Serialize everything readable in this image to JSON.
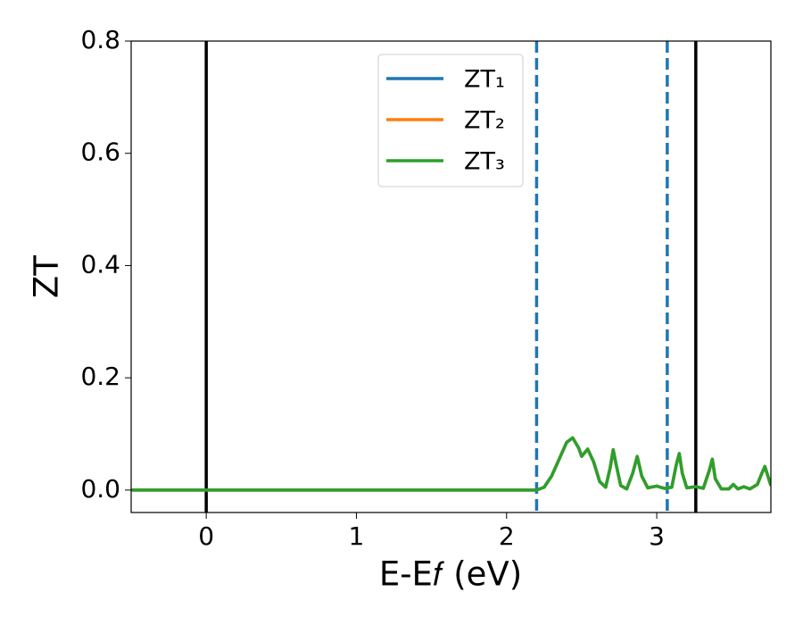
{
  "chart_data": {
    "type": "line",
    "x_label": "E-E𝑓 (eV)",
    "y_label": "ZT",
    "xlim": [
      -0.5,
      3.76
    ],
    "ylim": [
      -0.04,
      0.8
    ],
    "xticks": [
      0,
      1,
      2,
      3
    ],
    "yticks": [
      {
        "value": 0,
        "label": "0.0"
      },
      0.2,
      0.4,
      0.6,
      0.8
    ],
    "legend": "upper center",
    "vlines": [
      {
        "x": 0,
        "color": "#000000",
        "style": "solid"
      },
      {
        "x": 3.26,
        "color": "#000000",
        "style": "solid"
      },
      {
        "x": 2.2,
        "color": "#1f77b4",
        "style": "dashed"
      },
      {
        "x": 3.07,
        "color": "#1f77b4",
        "style": "dashed"
      }
    ],
    "x": [
      -0.5,
      2.2,
      2.25,
      2.3,
      2.35,
      2.4,
      2.44,
      2.48,
      2.5,
      2.54,
      2.58,
      2.62,
      2.66,
      2.69,
      2.71,
      2.73,
      2.76,
      2.8,
      2.84,
      2.87,
      2.9,
      2.94,
      3.0,
      3.05,
      3.1,
      3.13,
      3.15,
      3.17,
      3.2,
      3.26,
      3.31,
      3.35,
      3.37,
      3.39,
      3.43,
      3.48,
      3.51,
      3.54,
      3.58,
      3.62,
      3.67,
      3.7,
      3.72,
      3.74,
      3.76
    ],
    "series": [
      {
        "name": "ZT₁",
        "color": "#1f77b4",
        "values": [
          0,
          0,
          0.005,
          0.025,
          0.055,
          0.085,
          0.093,
          0.075,
          0.06,
          0.073,
          0.05,
          0.015,
          0.005,
          0.04,
          0.072,
          0.045,
          0.008,
          0.002,
          0.03,
          0.06,
          0.025,
          0.004,
          0.007,
          0.003,
          0.005,
          0.045,
          0.065,
          0.03,
          0.004,
          0.006,
          0.003,
          0.035,
          0.055,
          0.02,
          0.002,
          0.002,
          0.01,
          0.002,
          0.006,
          0.002,
          0.01,
          0.03,
          0.042,
          0.025,
          0.008
        ]
      },
      {
        "name": "ZT₂",
        "color": "#ff7f0e",
        "values": [
          0,
          0,
          0.005,
          0.025,
          0.055,
          0.085,
          0.093,
          0.075,
          0.06,
          0.073,
          0.05,
          0.015,
          0.005,
          0.04,
          0.072,
          0.045,
          0.008,
          0.002,
          0.03,
          0.06,
          0.025,
          0.004,
          0.007,
          0.003,
          0.005,
          0.045,
          0.065,
          0.03,
          0.004,
          0.006,
          0.003,
          0.035,
          0.055,
          0.02,
          0.002,
          0.002,
          0.01,
          0.002,
          0.006,
          0.002,
          0.01,
          0.03,
          0.042,
          0.025,
          0.008
        ]
      },
      {
        "name": "ZT₃",
        "color": "#2ca02c",
        "values": [
          0,
          0,
          0.005,
          0.025,
          0.055,
          0.085,
          0.093,
          0.075,
          0.06,
          0.073,
          0.05,
          0.015,
          0.005,
          0.04,
          0.072,
          0.045,
          0.008,
          0.002,
          0.03,
          0.06,
          0.025,
          0.004,
          0.007,
          0.003,
          0.005,
          0.045,
          0.065,
          0.03,
          0.004,
          0.006,
          0.003,
          0.035,
          0.055,
          0.02,
          0.002,
          0.002,
          0.01,
          0.002,
          0.006,
          0.002,
          0.01,
          0.03,
          0.042,
          0.025,
          0.008
        ]
      }
    ]
  }
}
